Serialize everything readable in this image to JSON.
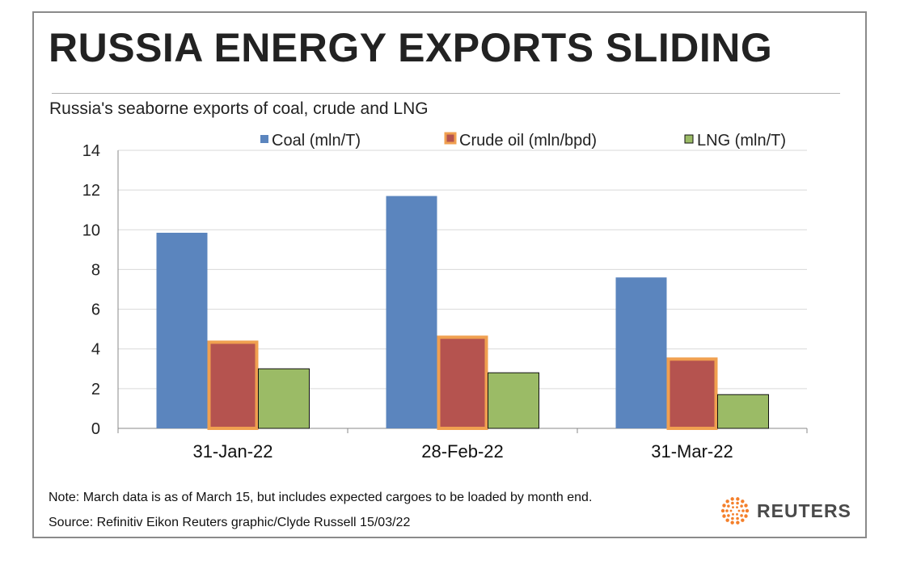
{
  "title": "RUSSIA ENERGY EXPORTS SLIDING",
  "subtitle": "Russia's seaborne exports of coal, crude and LNG",
  "note": "Note: March data is as of March 15, but includes expected cargoes to be loaded by month end.",
  "source": "Source: Refinitiv Eikon     Reuters graphic/Clyde Russell 15/03/22",
  "brand": {
    "name": "REUTERS",
    "logo_icon": "reuters-dot-logo",
    "logo_color": "#F47F2A"
  },
  "chart_data": {
    "type": "bar",
    "categories": [
      "31-Jan-22",
      "28-Feb-22",
      "31-Mar-22"
    ],
    "series": [
      {
        "name": "Coal (mln/T)",
        "values": [
          9.85,
          11.7,
          7.6
        ],
        "color": "#5B85BE"
      },
      {
        "name": "Crude oil (mln/bpd)",
        "values": [
          4.4,
          4.65,
          3.55
        ],
        "color": "#B5534F",
        "border_color": "#F0A050"
      },
      {
        "name": "LNG (mln/T)",
        "values": [
          3.0,
          2.8,
          1.7
        ],
        "color": "#9BBB66"
      }
    ],
    "ylim": [
      0,
      14
    ],
    "yticks": [
      0,
      2,
      4,
      6,
      8,
      10,
      12,
      14
    ],
    "xlabel": "",
    "ylabel": "",
    "grid": true,
    "legend": "top"
  }
}
